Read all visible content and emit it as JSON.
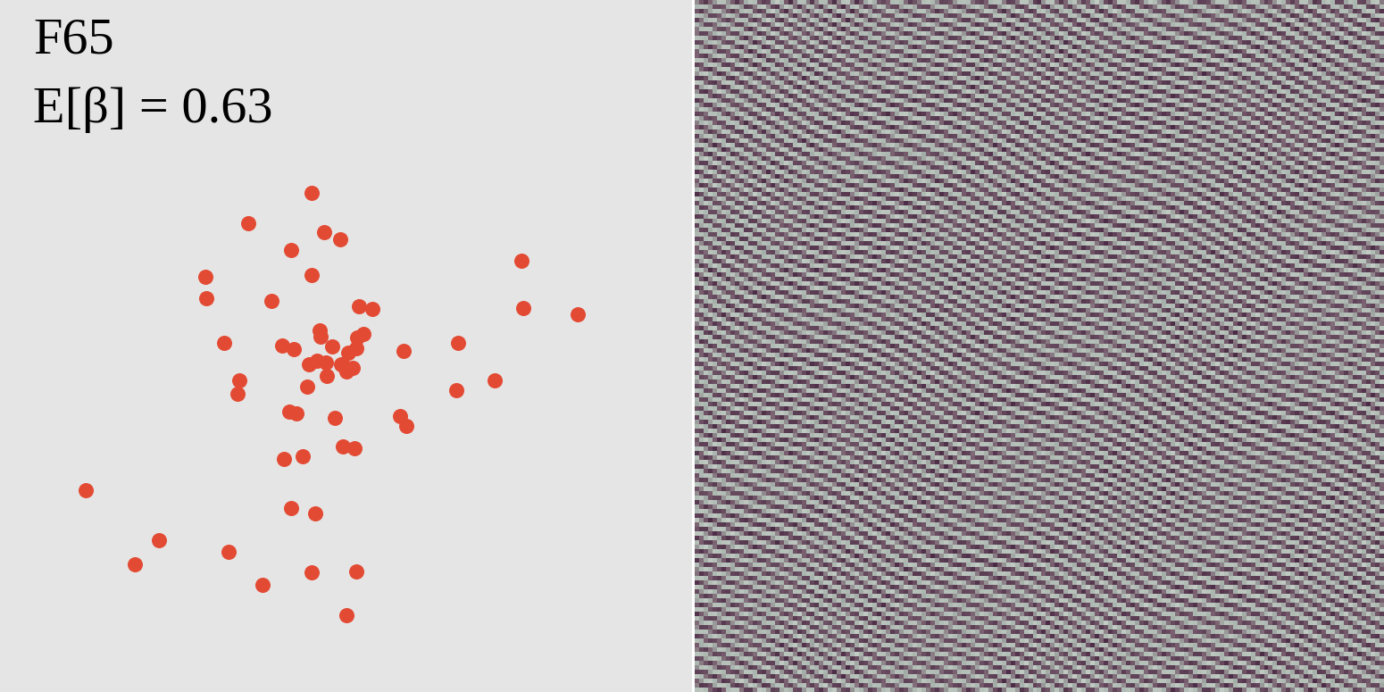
{
  "chart_data": {
    "type": "scatter",
    "title": "F65",
    "annotation": "E[β] = 0.63",
    "x": [
      349,
      278,
      363,
      381,
      326,
      584,
      230,
      349,
      231,
      304,
      586,
      647,
      402,
      417,
      251,
      358,
      359,
      316,
      329,
      372,
      400,
      407,
      452,
      513,
      399,
      355,
      346,
      365,
      382,
      395,
      388,
      366,
      268,
      344,
      266,
      511,
      554,
      324,
      332,
      375,
      448,
      455,
      384,
      397,
      318,
      339,
      96,
      326,
      353,
      178,
      151,
      256,
      349,
      399,
      294,
      388,
      390,
      385
    ],
    "y": [
      216,
      250,
      260,
      268,
      280,
      292,
      310,
      308,
      334,
      337,
      345,
      352,
      343,
      346,
      384,
      370,
      377,
      387,
      391,
      388,
      378,
      374,
      393,
      384,
      390,
      404,
      408,
      406,
      408,
      412,
      416,
      421,
      426,
      433,
      441,
      437,
      426,
      461,
      463,
      468,
      466,
      477,
      500,
      502,
      514,
      511,
      549,
      569,
      575,
      605,
      632,
      618,
      641,
      640,
      655,
      689,
      395,
      410
    ],
    "color": "#e34a33",
    "marker": "o",
    "xlim": [
      0,
      775
    ],
    "ylim": [
      775,
      0
    ],
    "tick_labels": false
  }
}
